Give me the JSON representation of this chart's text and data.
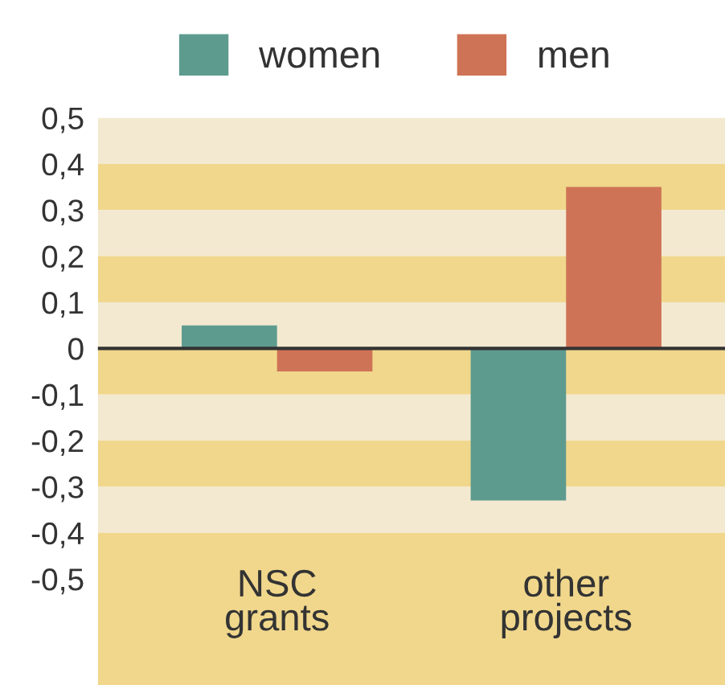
{
  "chart_data": {
    "type": "bar",
    "categories": [
      "NSC\ngrants",
      "other\nprojects"
    ],
    "series": [
      {
        "name": "women",
        "color": "#5e9b8f",
        "values": [
          0.05,
          -0.33
        ]
      },
      {
        "name": "men",
        "color": "#cf7356",
        "values": [
          -0.05,
          0.35
        ]
      }
    ],
    "ylim": [
      -0.73,
      0.5
    ],
    "yticks": [
      {
        "value": 0.5,
        "label": "0,5"
      },
      {
        "value": 0.4,
        "label": "0,4"
      },
      {
        "value": 0.3,
        "label": "0,3"
      },
      {
        "value": 0.2,
        "label": "0,2"
      },
      {
        "value": 0.1,
        "label": "0,1"
      },
      {
        "value": 0,
        "label": "0"
      },
      {
        "value": -0.1,
        "label": "-0,1"
      },
      {
        "value": -0.2,
        "label": "-0,2"
      },
      {
        "value": -0.3,
        "label": "-0,3"
      },
      {
        "value": -0.4,
        "label": "-0,4"
      },
      {
        "value": -0.5,
        "label": "-0,5"
      }
    ],
    "bands": [
      {
        "axis": "y",
        "from": 0.4,
        "to": 0.5,
        "color": "#f3e9d0"
      },
      {
        "axis": "y",
        "from": 0.3,
        "to": 0.4,
        "color": "#f0d78c"
      },
      {
        "axis": "y",
        "from": 0.2,
        "to": 0.3,
        "color": "#f3e9d0"
      },
      {
        "axis": "y",
        "from": 0.1,
        "to": 0.2,
        "color": "#f0d78c"
      },
      {
        "axis": "y",
        "from": 0,
        "to": 0.1,
        "color": "#f3e9d0"
      },
      {
        "axis": "y",
        "from": -0.1,
        "to": 0,
        "color": "#f0d78c"
      },
      {
        "axis": "y",
        "from": -0.2,
        "to": -0.1,
        "color": "#f3e9d0"
      },
      {
        "axis": "y",
        "from": -0.3,
        "to": -0.2,
        "color": "#f0d78c"
      },
      {
        "axis": "y",
        "from": -0.4,
        "to": -0.3,
        "color": "#f3e9d0"
      },
      {
        "axis": "y",
        "from": -0.73,
        "to": -0.4,
        "color": "#f0d78c"
      }
    ],
    "ref_lines": [
      {
        "axis": "y",
        "value": 0,
        "color": "#333333"
      }
    ],
    "legend": "top left",
    "grid": false
  }
}
